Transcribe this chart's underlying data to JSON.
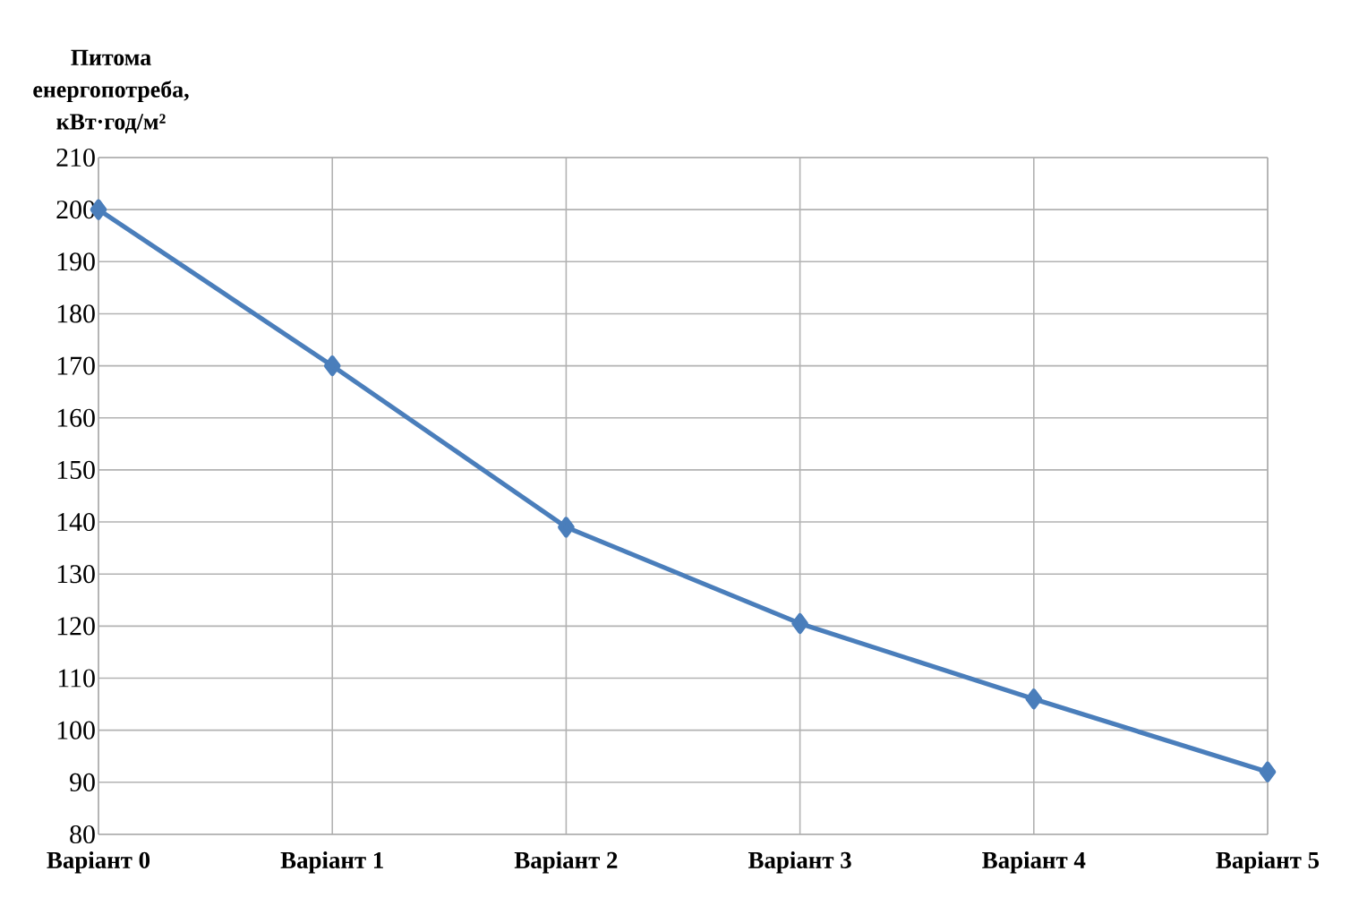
{
  "chart_data": {
    "type": "line",
    "ylabel": "Питома енергопотреба, кВт·год/м²",
    "categories": [
      "Варіант 0",
      "Варіант 1",
      "Варіант 2",
      "Варіант 3",
      "Варіант 4",
      "Варіант 5"
    ],
    "series": [
      {
        "color": "#4a7ebb",
        "values": [
          200,
          170,
          139,
          120.5,
          106,
          92
        ]
      }
    ],
    "ylim": [
      80,
      210
    ],
    "yticks": [
      80,
      90,
      100,
      110,
      120,
      130,
      140,
      150,
      160,
      170,
      180,
      190,
      200,
      210
    ],
    "grid": true,
    "marker": "diamond"
  }
}
